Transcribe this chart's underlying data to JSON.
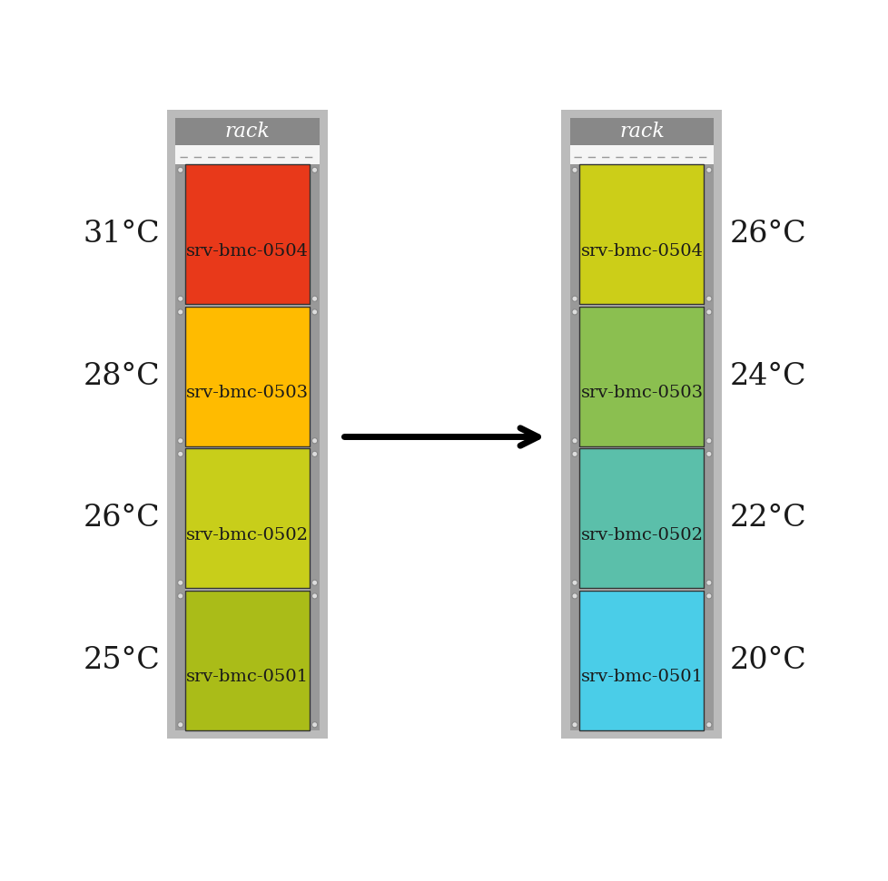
{
  "left_rack": {
    "servers": [
      "srv-bmc-0504",
      "srv-bmc-0503",
      "srv-bmc-0502",
      "srv-bmc-0501"
    ],
    "colors": [
      "#E8391A",
      "#FFBB00",
      "#C8CE1A",
      "#AABC18"
    ],
    "temps": [
      "31°C",
      "28°C",
      "26°C",
      "25°C"
    ]
  },
  "right_rack": {
    "servers": [
      "srv-bmc-0504",
      "srv-bmc-0503",
      "srv-bmc-0502",
      "srv-bmc-0501"
    ],
    "colors": [
      "#CCCE18",
      "#8BBF50",
      "#5BBFAA",
      "#4ACDE8"
    ],
    "temps": [
      "26°C",
      "24°C",
      "22°C",
      "20°C"
    ]
  },
  "rack_label": "rack",
  "rack_outer_color": "#BBBBBB",
  "rack_frame_color": "#999999",
  "rack_header_color": "#888888",
  "rack_white_strip_color": "#F5F5F5",
  "bg_color": "#FFFFFF",
  "text_color_white": "#FFFFFF",
  "text_color_dark": "#1A1A1A",
  "server_label_fontsize": 14,
  "temp_label_fontsize": 24,
  "rack_label_fontsize": 16
}
